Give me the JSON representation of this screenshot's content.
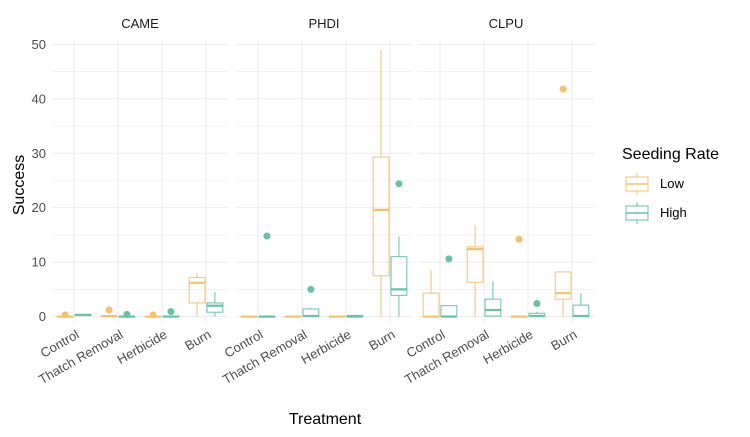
{
  "chart_data": {
    "type": "boxplot",
    "xlabel": "Treatment",
    "ylabel": "Success",
    "ylim": [
      -1,
      51
    ],
    "y_ticks": [
      0,
      10,
      20,
      30,
      40,
      50
    ],
    "grid": true,
    "facets": [
      "CAME",
      "PHDI",
      "CLPU"
    ],
    "categories": [
      "Control",
      "Thatch Removal",
      "Herbicide",
      "Burn"
    ],
    "legend": {
      "title": "Seeding Rate",
      "position": "right",
      "entries": [
        {
          "name": "Low",
          "color": "#F5C16F"
        },
        {
          "name": "High",
          "color": "#66C2A5"
        }
      ]
    },
    "panels": [
      {
        "facet": "CAME",
        "boxes": [
          {
            "treatment": "Control",
            "rate": "Low",
            "min": 0,
            "q1": 0,
            "median": 0,
            "q3": 0,
            "max": 0,
            "outliers": [
              0.3
            ]
          },
          {
            "treatment": "Control",
            "rate": "High",
            "min": 0.1,
            "q1": 0.2,
            "median": 0.3,
            "q3": 0.4,
            "max": 0.5,
            "outliers": []
          },
          {
            "treatment": "Thatch Removal",
            "rate": "Low",
            "min": 0,
            "q1": 0,
            "median": 0.1,
            "q3": 0.2,
            "max": 0.3,
            "outliers": [
              1.2
            ]
          },
          {
            "treatment": "Thatch Removal",
            "rate": "High",
            "min": 0,
            "q1": 0,
            "median": 0,
            "q3": 0,
            "max": 0,
            "outliers": [
              0.4
            ]
          },
          {
            "treatment": "Herbicide",
            "rate": "Low",
            "min": 0,
            "q1": 0,
            "median": 0,
            "q3": 0,
            "max": 0,
            "outliers": [
              0.3
            ]
          },
          {
            "treatment": "Herbicide",
            "rate": "High",
            "min": 0,
            "q1": 0,
            "median": 0,
            "q3": 0.1,
            "max": 0.2,
            "outliers": [
              0.9
            ]
          },
          {
            "treatment": "Burn",
            "rate": "Low",
            "min": 0,
            "q1": 2.5,
            "median": 6.2,
            "q3": 7.2,
            "max": 8.0,
            "outliers": []
          },
          {
            "treatment": "Burn",
            "rate": "High",
            "min": 0,
            "q1": 0.8,
            "median": 2.0,
            "q3": 2.5,
            "max": 4.5,
            "outliers": []
          }
        ]
      },
      {
        "facet": "PHDI",
        "boxes": [
          {
            "treatment": "Control",
            "rate": "Low",
            "min": 0,
            "q1": 0,
            "median": 0,
            "q3": 0,
            "max": 0,
            "outliers": []
          },
          {
            "treatment": "Control",
            "rate": "High",
            "min": 0,
            "q1": 0,
            "median": 0,
            "q3": 0,
            "max": 0,
            "outliers": [
              14.8
            ]
          },
          {
            "treatment": "Thatch Removal",
            "rate": "Low",
            "min": 0,
            "q1": 0,
            "median": 0,
            "q3": 0,
            "max": 0,
            "outliers": []
          },
          {
            "treatment": "Thatch Removal",
            "rate": "High",
            "min": 0,
            "q1": 0,
            "median": 0.1,
            "q3": 1.4,
            "max": 1.6,
            "outliers": [
              5.0
            ]
          },
          {
            "treatment": "Herbicide",
            "rate": "Low",
            "min": 0,
            "q1": 0,
            "median": 0,
            "q3": 0,
            "max": 0,
            "outliers": []
          },
          {
            "treatment": "Herbicide",
            "rate": "High",
            "min": 0,
            "q1": 0,
            "median": 0,
            "q3": 0.2,
            "max": 0.4,
            "outliers": []
          },
          {
            "treatment": "Burn",
            "rate": "Low",
            "min": 0,
            "q1": 7.5,
            "median": 19.6,
            "q3": 29.3,
            "max": 49.0,
            "outliers": []
          },
          {
            "treatment": "Burn",
            "rate": "High",
            "min": 0,
            "q1": 3.9,
            "median": 5.0,
            "q3": 11.0,
            "max": 14.7,
            "outliers": [
              24.4
            ]
          }
        ]
      },
      {
        "facet": "CLPU",
        "boxes": [
          {
            "treatment": "Control",
            "rate": "Low",
            "min": 0,
            "q1": 0,
            "median": 0,
            "q3": 4.3,
            "max": 8.6,
            "outliers": []
          },
          {
            "treatment": "Control",
            "rate": "High",
            "min": 0,
            "q1": 0,
            "median": 0,
            "q3": 2.0,
            "max": 2.0,
            "outliers": [
              10.6
            ]
          },
          {
            "treatment": "Thatch Removal",
            "rate": "Low",
            "min": 0,
            "q1": 6.3,
            "median": 12.4,
            "q3": 12.8,
            "max": 16.8,
            "outliers": []
          },
          {
            "treatment": "Thatch Removal",
            "rate": "High",
            "min": 0,
            "q1": 0.1,
            "median": 1.2,
            "q3": 3.2,
            "max": 6.5,
            "outliers": []
          },
          {
            "treatment": "Herbicide",
            "rate": "Low",
            "min": 0,
            "q1": 0,
            "median": 0,
            "q3": 0,
            "max": 0,
            "outliers": [
              14.2
            ]
          },
          {
            "treatment": "Herbicide",
            "rate": "High",
            "min": 0,
            "q1": 0,
            "median": 0.1,
            "q3": 0.6,
            "max": 0.9,
            "outliers": [
              2.4
            ]
          },
          {
            "treatment": "Burn",
            "rate": "Low",
            "min": 0,
            "q1": 3.2,
            "median": 4.3,
            "q3": 8.2,
            "max": 8.3,
            "outliers": [
              41.8
            ]
          },
          {
            "treatment": "Burn",
            "rate": "High",
            "min": 0,
            "q1": 0,
            "median": 0.1,
            "q3": 2.1,
            "max": 4.3,
            "outliers": []
          }
        ]
      }
    ]
  }
}
